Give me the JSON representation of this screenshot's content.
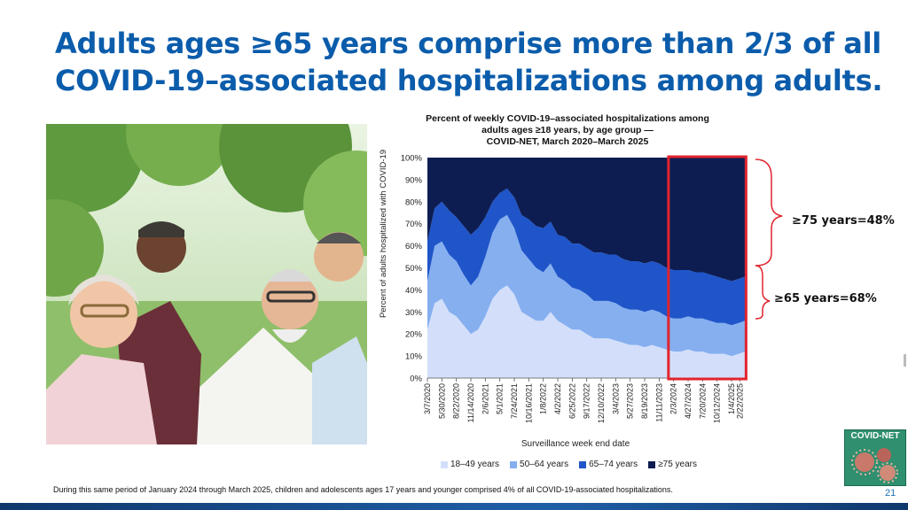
{
  "slide": {
    "title_line1": "Adults ages ≥65 years comprise more than 2/3 of all",
    "title_line2": "COVID-19–associated hospitalizations among adults.",
    "footnote": "During this same period of January 2024 through March 2025, children and adolescents ages 17 years and younger comprised 4% of all COVID-19-associated hospitalizations.",
    "page_number": "21",
    "logo_text": "COVID-NET"
  },
  "annotations": {
    "over75": "≥75 years=48%",
    "over65": "≥65 years=68%"
  },
  "colors": {
    "title": "#0b5cab",
    "age_18_49": "#d3dffa",
    "age_50_64": "#86aff0",
    "age_65_74": "#1f55c9",
    "age_75_plus": "#0d1d52",
    "highlight_box": "#e0242e"
  },
  "chart_data": {
    "type": "area",
    "stacked": true,
    "percent": true,
    "title_lines": [
      "Percent of weekly COVID-19–associated hospitalizations among",
      "adults ages ≥18 years, by age group —",
      "COVID-NET, March 2020–March 2025"
    ],
    "xlabel": "Surveillance week end date",
    "ylabel": "Percent of adults hospitalized with COVID-19",
    "ylim": [
      0,
      100
    ],
    "yticks": [
      "0%",
      "10%",
      "20%",
      "30%",
      "40%",
      "50%",
      "60%",
      "70%",
      "80%",
      "90%",
      "100%"
    ],
    "xticks": [
      "3/7/2020",
      "5/30/2020",
      "8/22/2020",
      "11/14/2020",
      "2/6/2021",
      "5/1/2021",
      "7/24/2021",
      "10/16/2021",
      "1/8/2022",
      "4/2/2022",
      "6/25/2022",
      "9/17/2022",
      "12/10/2022",
      "3/4/2023",
      "5/27/2023",
      "8/19/2023",
      "11/11/2023",
      "2/3/2024",
      "4/27/2024",
      "7/20/2024",
      "10/12/2024",
      "1/4/2025",
      "2/22/2025"
    ],
    "legend_position": "bottom",
    "highlight_range": [
      "1/4/2024",
      "3/29/2025"
    ],
    "x": [
      "2020-03-07",
      "2020-04-18",
      "2020-05-30",
      "2020-07-11",
      "2020-08-22",
      "2020-10-03",
      "2020-11-14",
      "2020-12-26",
      "2021-02-06",
      "2021-03-20",
      "2021-05-01",
      "2021-06-12",
      "2021-07-24",
      "2021-09-04",
      "2021-10-16",
      "2021-11-27",
      "2022-01-08",
      "2022-02-19",
      "2022-04-02",
      "2022-05-14",
      "2022-06-25",
      "2022-08-06",
      "2022-09-17",
      "2022-10-29",
      "2022-12-10",
      "2023-01-21",
      "2023-03-04",
      "2023-04-15",
      "2023-05-27",
      "2023-07-08",
      "2023-08-19",
      "2023-09-30",
      "2023-11-11",
      "2023-12-23",
      "2024-02-03",
      "2024-03-16",
      "2024-04-27",
      "2024-06-08",
      "2024-07-20",
      "2024-08-31",
      "2024-10-12",
      "2024-11-23",
      "2025-01-04",
      "2025-02-15",
      "2025-03-22"
    ],
    "series": [
      {
        "name": "18–49 years",
        "values": [
          22,
          34,
          36,
          30,
          28,
          24,
          20,
          22,
          28,
          36,
          40,
          42,
          38,
          30,
          28,
          26,
          26,
          30,
          26,
          24,
          22,
          22,
          20,
          18,
          18,
          18,
          17,
          16,
          15,
          15,
          14,
          15,
          14,
          13,
          12,
          12,
          13,
          12,
          12,
          11,
          11,
          11,
          10,
          11,
          12
        ]
      },
      {
        "name": "50–64 years",
        "values": [
          22,
          26,
          26,
          26,
          25,
          23,
          22,
          24,
          27,
          30,
          32,
          32,
          30,
          28,
          26,
          24,
          22,
          22,
          20,
          20,
          19,
          18,
          18,
          17,
          17,
          17,
          17,
          16,
          16,
          16,
          16,
          16,
          16,
          15,
          15,
          15,
          15,
          15,
          15,
          15,
          14,
          14,
          14,
          14,
          14
        ]
      },
      {
        "name": "65–74 years",
        "values": [
          18,
          17,
          18,
          20,
          20,
          22,
          23,
          22,
          18,
          14,
          12,
          12,
          14,
          16,
          18,
          19,
          20,
          19,
          19,
          20,
          20,
          21,
          21,
          22,
          22,
          21,
          22,
          22,
          22,
          22,
          22,
          22,
          22,
          22,
          22,
          22,
          21,
          21,
          21,
          21,
          21,
          20,
          20,
          20,
          20
        ]
      },
      {
        "name": "≥75 years",
        "values": [
          38,
          23,
          20,
          24,
          27,
          31,
          35,
          32,
          27,
          20,
          16,
          14,
          18,
          26,
          28,
          31,
          32,
          29,
          35,
          36,
          39,
          39,
          41,
          43,
          43,
          44,
          44,
          46,
          47,
          47,
          48,
          47,
          48,
          50,
          51,
          51,
          51,
          52,
          52,
          53,
          54,
          55,
          56,
          55,
          54
        ]
      }
    ]
  }
}
